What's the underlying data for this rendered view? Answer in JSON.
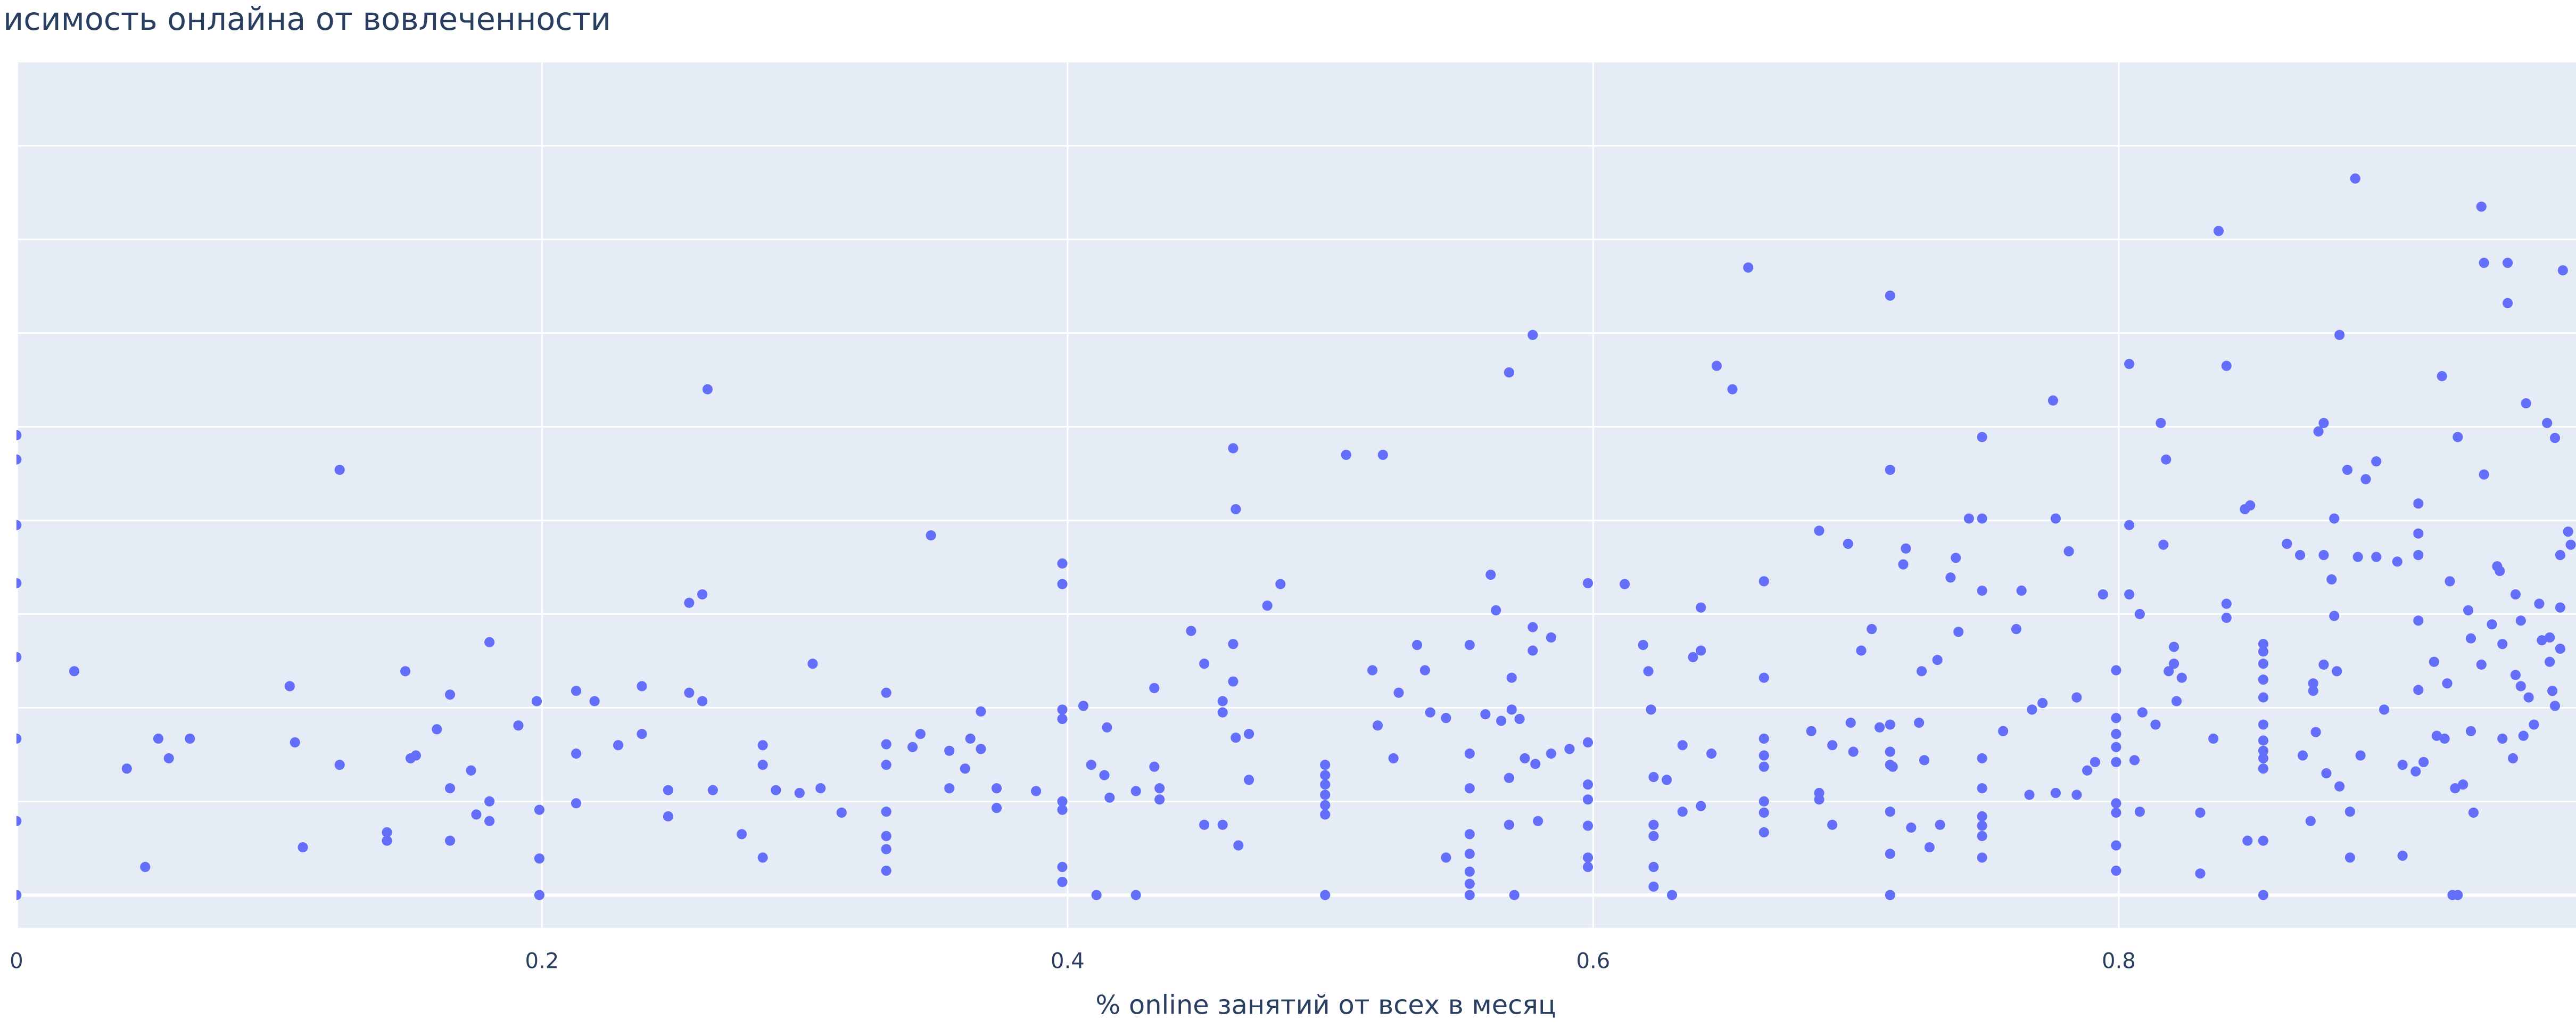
{
  "chart_data": {
    "type": "scatter",
    "title": "исимость онлайна от вовлеченности",
    "x_label": "% online занятий от всех в месяц",
    "color": "#636efa",
    "grid": true,
    "xlim": [
      0,
      0.974
    ],
    "ylim": [
      -0.35,
      8.89
    ],
    "xticks": [
      0,
      0.2,
      0.4,
      0.6,
      0.8
    ],
    "yticks": [
      0,
      1,
      2,
      3,
      4,
      5,
      6,
      7,
      8
    ],
    "x": [
      0,
      0,
      0,
      0,
      0,
      0,
      0,
      0,
      0.022,
      0.042,
      0.049,
      0.054,
      0.058,
      0.066,
      0.104,
      0.106,
      0.109,
      0.123,
      0.123,
      0.141,
      0.141,
      0.148,
      0.15,
      0.152,
      0.16,
      0.165,
      0.165,
      0.165,
      0.173,
      0.175,
      0.18,
      0.18,
      0.18,
      0.191,
      0.198,
      0.199,
      0.199,
      0.199,
      0.213,
      0.213,
      0.213,
      0.22,
      0.229,
      0.238,
      0.238,
      0.248,
      0.248,
      0.256,
      0.256,
      0.261,
      0.261,
      0.263,
      0.265,
      0.276,
      0.284,
      0.284,
      0.284,
      0.289,
      0.298,
      0.303,
      0.306,
      0.314,
      0.331,
      0.331,
      0.331,
      0.331,
      0.331,
      0.331,
      0.331,
      0.341,
      0.344,
      0.348,
      0.355,
      0.355,
      0.361,
      0.363,
      0.367,
      0.367,
      0.373,
      0.373,
      0.388,
      0.398,
      0.398,
      0.398,
      0.398,
      0.398,
      0.398,
      0.398,
      0.398,
      0.406,
      0.409,
      0.411,
      0.414,
      0.415,
      0.416,
      0.426,
      0.426,
      0.433,
      0.433,
      0.435,
      0.435,
      0.447,
      0.452,
      0.452,
      0.459,
      0.459,
      0.459,
      0.463,
      0.463,
      0.463,
      0.464,
      0.464,
      0.465,
      0.469,
      0.469,
      0.476,
      0.481,
      0.498,
      0.498,
      0.498,
      0.498,
      0.498,
      0.498,
      0.498,
      0.506,
      0.516,
      0.518,
      0.52,
      0.524,
      0.526,
      0.533,
      0.536,
      0.538,
      0.544,
      0.544,
      0.553,
      0.553,
      0.553,
      0.553,
      0.553,
      0.553,
      0.553,
      0.553,
      0.559,
      0.561,
      0.563,
      0.565,
      0.568,
      0.568,
      0.568,
      0.569,
      0.569,
      0.57,
      0.572,
      0.574,
      0.577,
      0.577,
      0.577,
      0.578,
      0.579,
      0.584,
      0.584,
      0.591,
      0.598,
      0.598,
      0.598,
      0.598,
      0.598,
      0.598,
      0.598,
      0.612,
      0.619,
      0.621,
      0.622,
      0.623,
      0.623,
      0.623,
      0.623,
      0.623,
      0.628,
      0.63,
      0.634,
      0.634,
      0.638,
      0.641,
      0.641,
      0.641,
      0.645,
      0.647,
      0.653,
      0.659,
      0.665,
      0.665,
      0.665,
      0.665,
      0.665,
      0.665,
      0.665,
      0.665,
      0.683,
      0.686,
      0.686,
      0.686,
      0.691,
      0.691,
      0.697,
      0.698,
      0.699,
      0.702,
      0.706,
      0.709,
      0.713,
      0.713,
      0.713,
      0.713,
      0.713,
      0.713,
      0.713,
      0.713,
      0.714,
      0.718,
      0.719,
      0.721,
      0.724,
      0.725,
      0.726,
      0.728,
      0.731,
      0.732,
      0.736,
      0.738,
      0.739,
      0.743,
      0.748,
      0.748,
      0.748,
      0.748,
      0.748,
      0.748,
      0.748,
      0.748,
      0.748,
      0.756,
      0.761,
      0.763,
      0.766,
      0.767,
      0.771,
      0.775,
      0.776,
      0.776,
      0.781,
      0.784,
      0.784,
      0.788,
      0.791,
      0.794,
      0.799,
      0.799,
      0.799,
      0.799,
      0.799,
      0.799,
      0.799,
      0.799,
      0.799,
      0.804,
      0.804,
      0.804,
      0.806,
      0.808,
      0.808,
      0.809,
      0.814,
      0.816,
      0.817,
      0.818,
      0.819,
      0.821,
      0.821,
      0.822,
      0.824,
      0.831,
      0.831,
      0.836,
      0.838,
      0.841,
      0.841,
      0.841,
      0.848,
      0.849,
      0.85,
      0.855,
      0.855,
      0.855,
      0.855,
      0.855,
      0.855,
      0.855,
      0.855,
      0.855,
      0.855,
      0.855,
      0.855,
      0.864,
      0.869,
      0.87,
      0.873,
      0.874,
      0.874,
      0.875,
      0.876,
      0.878,
      0.878,
      0.878,
      0.879,
      0.881,
      0.882,
      0.882,
      0.883,
      0.884,
      0.884,
      0.887,
      0.888,
      0.888,
      0.89,
      0.891,
      0.892,
      0.894,
      0.898,
      0.898,
      0.901,
      0.906,
      0.908,
      0.908,
      0.913,
      0.914,
      0.914,
      0.914,
      0.914,
      0.914,
      0.916,
      0.92,
      0.921,
      0.923,
      0.924,
      0.925,
      0.926,
      0.927,
      0.928,
      0.929,
      0.929,
      0.931,
      0.933,
      0.934,
      0.934,
      0.935,
      0.938,
      0.938,
      0.939,
      0.939,
      0.942,
      0.944,
      0.945,
      0.946,
      0.946,
      0.948,
      0.948,
      0.95,
      0.951,
      0.951,
      0.953,
      0.953,
      0.954,
      0.955,
      0.956,
      0.958,
      0.96,
      0.961,
      0.963,
      0.964,
      0.964,
      0.965,
      0.966,
      0.966,
      0.968,
      0.968,
      0.968,
      0.969,
      0.971,
      0.972
    ],
    "values": [
      4.91,
      4.65,
      3.95,
      3.33,
      2.54,
      1.67,
      0.79,
      0,
      2.39,
      1.35,
      0.3,
      1.67,
      1.46,
      1.67,
      2.23,
      1.63,
      0.51,
      4.54,
      1.39,
      0.67,
      0.58,
      2.39,
      1.46,
      1.49,
      1.77,
      2.14,
      1.14,
      0.58,
      1.33,
      0.86,
      2.7,
      1.0,
      0.79,
      1.81,
      2.07,
      0.91,
      0.39,
      0,
      2.18,
      1.51,
      0.98,
      2.07,
      1.6,
      2.23,
      1.72,
      1.12,
      0.84,
      3.12,
      2.16,
      3.21,
      2.07,
      5.4,
      1.12,
      0.65,
      1.6,
      1.39,
      0.4,
      1.12,
      1.09,
      2.47,
      1.14,
      0.88,
      2.16,
      1.61,
      1.39,
      0.89,
      0.63,
      0.49,
      0.26,
      1.58,
      1.72,
      3.84,
      1.54,
      1.14,
      1.35,
      1.67,
      1.96,
      1.56,
      1.14,
      0.93,
      1.11,
      3.54,
      3.32,
      1.98,
      1.88,
      1.0,
      0.91,
      0.3,
      0.14,
      2.02,
      1.39,
      0,
      1.28,
      1.79,
      1.04,
      1.11,
      0,
      2.21,
      1.37,
      1.14,
      1.02,
      2.82,
      2.47,
      0.75,
      2.07,
      1.95,
      0.75,
      4.77,
      2.68,
      2.28,
      4.12,
      1.68,
      0.53,
      1.72,
      1.23,
      3.09,
      3.32,
      1.39,
      1.28,
      1.18,
      1.07,
      0.96,
      0.86,
      0,
      4.7,
      2.4,
      1.81,
      4.7,
      1.46,
      2.16,
      2.67,
      2.4,
      1.95,
      0.4,
      1.89,
      2.67,
      1.51,
      1.14,
      0.65,
      0.44,
      0.25,
      0.12,
      0,
      1.93,
      3.42,
      3.04,
      1.86,
      1.25,
      0.75,
      5.58,
      2.32,
      1.98,
      0,
      1.88,
      1.46,
      5.98,
      2.86,
      2.61,
      1.4,
      0.79,
      2.75,
      1.51,
      1.56,
      3.33,
      1.63,
      1.18,
      1.02,
      0.74,
      0.4,
      0.3,
      3.32,
      2.67,
      2.39,
      1.98,
      1.26,
      0.75,
      0.63,
      0.3,
      0.09,
      1.23,
      0,
      1.6,
      0.89,
      2.54,
      0.95,
      2.61,
      3.07,
      1.51,
      5.65,
      5.4,
      6.7,
      2.32,
      1.67,
      1.49,
      1.37,
      1.0,
      0.88,
      0.67,
      3.35,
      1.75,
      3.89,
      1.09,
      1.02,
      1.6,
      0.75,
      3.75,
      1.84,
      1.53,
      2.61,
      2.84,
      1.79,
      6.4,
      4.54,
      1.82,
      1.53,
      1.39,
      0.89,
      0.44,
      0,
      1.37,
      3.53,
      3.7,
      0.72,
      1.84,
      2.39,
      1.44,
      0.51,
      2.51,
      0.75,
      3.39,
      3.6,
      2.81,
      4.02,
      4.89,
      4.02,
      3.25,
      1.46,
      1.14,
      0.84,
      0.74,
      0.63,
      0.4,
      1.75,
      2.84,
      3.25,
      1.07,
      1.98,
      2.05,
      5.28,
      4.02,
      1.09,
      3.67,
      2.11,
      1.07,
      1.33,
      1.42,
      3.21,
      2.4,
      1.89,
      1.72,
      1.58,
      1.42,
      0.98,
      0.88,
      0.53,
      0.26,
      5.67,
      3.21,
      3.95,
      1.44,
      0.89,
      3.0,
      1.95,
      1.82,
      5.04,
      3.74,
      4.65,
      2.39,
      2.47,
      2.65,
      2.07,
      2.32,
      0.88,
      0.23,
      1.67,
      7.09,
      5.65,
      3.11,
      2.96,
      4.12,
      0.58,
      4.16,
      2.68,
      2.6,
      2.47,
      2.3,
      2.11,
      1.82,
      1.65,
      1.54,
      1.46,
      1.35,
      0.58,
      0,
      3.75,
      3.63,
      1.49,
      0.79,
      2.26,
      2.18,
      1.74,
      4.95,
      5.04,
      3.63,
      2.46,
      1.3,
      3.37,
      2.98,
      4.02,
      2.39,
      5.98,
      1.16,
      4.54,
      0.89,
      0.4,
      7.65,
      3.61,
      1.49,
      4.44,
      4.63,
      3.61,
      1.98,
      3.56,
      0.42,
      1.39,
      1.32,
      2.19,
      4.18,
      2.93,
      3.63,
      3.86,
      1.42,
      2.49,
      1.7,
      5.54,
      1.67,
      2.26,
      3.35,
      0,
      1.14,
      0,
      4.89,
      1.18,
      3.04,
      2.74,
      1.75,
      0.88,
      7.35,
      2.46,
      6.75,
      4.49,
      2.89,
      3.51,
      3.46,
      1.67,
      2.68,
      6.75,
      6.32,
      1.46,
      3.21,
      2.35,
      2.93,
      2.23,
      1.7,
      5.25,
      2.11,
      1.82,
      3.11,
      2.72,
      5.04,
      2.75,
      2.49,
      2.18,
      4.88,
      2.02,
      3.07,
      3.63,
      2.63,
      6.67,
      3.88,
      3.74
    ]
  }
}
